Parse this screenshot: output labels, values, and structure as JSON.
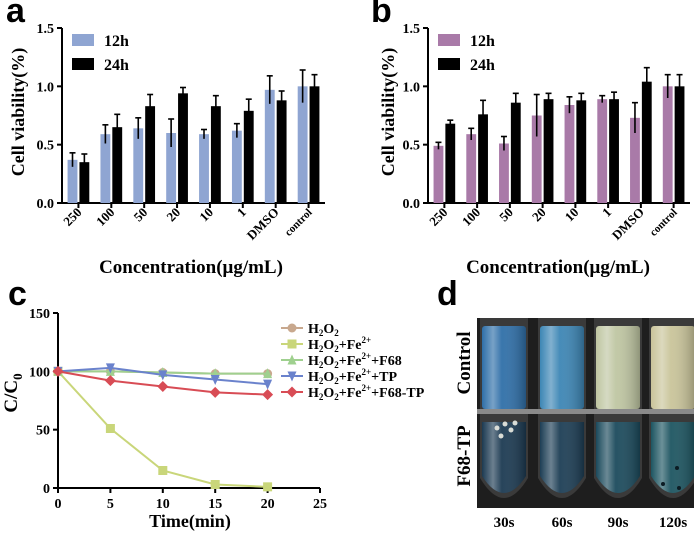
{
  "panel_letters": {
    "a": "a",
    "b": "b",
    "c": "c",
    "d": "d"
  },
  "chart_data": [
    {
      "panel": "a",
      "type": "bar",
      "ylabel": "Cell viability(%)",
      "xlabel": "Concentration(μg/mL)",
      "ylim": [
        0,
        1.5
      ],
      "yticks": [
        "0.0",
        "0.5",
        "1.0",
        "1.5"
      ],
      "categories": [
        "250",
        "100",
        "50",
        "20",
        "10",
        "1",
        "DMSO",
        "control"
      ],
      "legend_position": "top-left",
      "series": [
        {
          "name": "12h",
          "color": "#8fa5d2",
          "values": [
            0.37,
            0.59,
            0.64,
            0.6,
            0.59,
            0.62,
            0.97,
            1.0
          ],
          "errors": [
            0.06,
            0.08,
            0.09,
            0.12,
            0.04,
            0.06,
            0.12,
            0.14
          ]
        },
        {
          "name": "24h",
          "color": "#000000",
          "values": [
            0.35,
            0.65,
            0.83,
            0.94,
            0.83,
            0.79,
            0.88,
            1.0
          ],
          "errors": [
            0.07,
            0.11,
            0.1,
            0.05,
            0.09,
            0.1,
            0.08,
            0.1
          ]
        }
      ]
    },
    {
      "panel": "b",
      "type": "bar",
      "ylabel": "Cell viability(%)",
      "xlabel": "Concentration(μg/mL)",
      "ylim": [
        0,
        1.5
      ],
      "yticks": [
        "0.0",
        "0.5",
        "1.0",
        "1.5"
      ],
      "categories": [
        "250",
        "100",
        "50",
        "20",
        "10",
        "1",
        "DMSO",
        "control"
      ],
      "legend_position": "top-left",
      "series": [
        {
          "name": "12h",
          "color": "#a97aa8",
          "values": [
            0.49,
            0.59,
            0.51,
            0.75,
            0.84,
            0.89,
            0.73,
            1.0
          ],
          "errors": [
            0.03,
            0.05,
            0.06,
            0.18,
            0.07,
            0.03,
            0.13,
            0.1
          ]
        },
        {
          "name": "24h",
          "color": "#000000",
          "values": [
            0.68,
            0.76,
            0.86,
            0.89,
            0.88,
            0.89,
            1.04,
            1.0
          ],
          "errors": [
            0.03,
            0.12,
            0.08,
            0.05,
            0.06,
            0.06,
            0.12,
            0.1
          ]
        }
      ]
    },
    {
      "panel": "c",
      "type": "line",
      "ylabel_main": "C/C",
      "ylabel_sub": "0",
      "xlabel": "Time(min)",
      "xlim": [
        0,
        25
      ],
      "ylim": [
        0,
        150
      ],
      "xticks": [
        "0",
        "5",
        "10",
        "15",
        "20",
        "25"
      ],
      "yticks": [
        "0",
        "50",
        "100",
        "150"
      ],
      "x": [
        0,
        5,
        10,
        15,
        20
      ],
      "legend_position": "top-right",
      "series": [
        {
          "name_parts": [
            [
              "H",
              ""
            ],
            [
              "2",
              "sub"
            ],
            [
              "O",
              ""
            ],
            [
              "2",
              "sub"
            ]
          ],
          "marker": "circle",
          "color": "#c8a88e",
          "values": [
            100,
            100,
            99,
            98,
            98
          ]
        },
        {
          "name_parts": [
            [
              "H",
              ""
            ],
            [
              "2",
              "sub"
            ],
            [
              "O",
              ""
            ],
            [
              "2",
              "sub"
            ],
            [
              "+Fe",
              ""
            ],
            [
              "2+",
              "sup"
            ]
          ],
          "marker": "square",
          "color": "#c9d67a",
          "values": [
            100,
            51,
            15,
            3,
            1
          ]
        },
        {
          "name_parts": [
            [
              "H",
              ""
            ],
            [
              "2",
              "sub"
            ],
            [
              "O",
              ""
            ],
            [
              "2",
              "sub"
            ],
            [
              "+Fe",
              ""
            ],
            [
              "2+",
              "sup"
            ],
            [
              "+F68",
              ""
            ]
          ],
          "marker": "triangle-up",
          "color": "#9fd08f",
          "values": [
            100,
            100,
            99,
            98,
            98
          ]
        },
        {
          "name_parts": [
            [
              "H",
              ""
            ],
            [
              "2",
              "sub"
            ],
            [
              "O",
              ""
            ],
            [
              "2",
              "sub"
            ],
            [
              "+Fe",
              ""
            ],
            [
              "2+",
              "sup"
            ],
            [
              "+TP",
              ""
            ]
          ],
          "marker": "triangle-down",
          "color": "#6a82cc",
          "values": [
            100,
            103,
            97,
            93,
            89
          ]
        },
        {
          "name_parts": [
            [
              "H",
              ""
            ],
            [
              "2",
              "sub"
            ],
            [
              "O",
              ""
            ],
            [
              "2",
              "sub"
            ],
            [
              "+Fe",
              ""
            ],
            [
              "2+",
              "sup"
            ],
            [
              "+F68-TP",
              ""
            ]
          ],
          "marker": "diamond",
          "color": "#d84c55",
          "values": [
            100,
            92,
            87,
            82,
            80
          ]
        }
      ]
    }
  ],
  "photo_panel": {
    "row_labels": [
      "Control",
      "F68-TP"
    ],
    "time_labels": [
      "30s",
      "60s",
      "90s",
      "120s"
    ],
    "colors": {
      "background": "#1e1e1e",
      "control_liquid": [
        "#2f6fa8",
        "#3d86b5",
        "#bfc6a2",
        "#c9c49a"
      ],
      "f68_liquid": [
        "#1c3a52",
        "#1d3e55",
        "#1b4a5c",
        "#1d5561"
      ]
    }
  }
}
